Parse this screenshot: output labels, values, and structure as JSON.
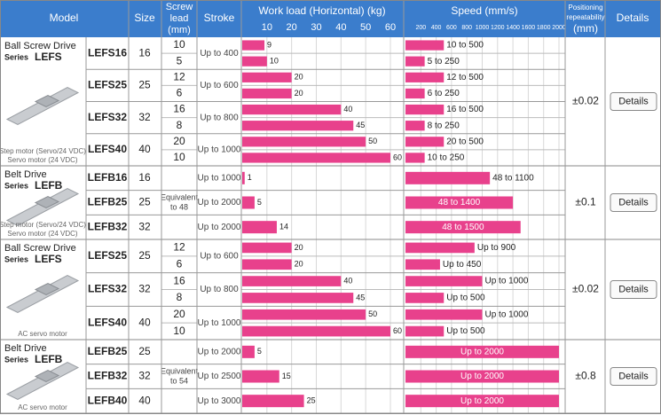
{
  "header": {
    "model": "Model",
    "size": "Size",
    "lead": [
      "Screw",
      "lead",
      "(mm)"
    ],
    "stroke": "Stroke",
    "load": "Work load (Horizontal)  (kg)",
    "speed": "Speed (mm/s)",
    "positioning": [
      "Positioning",
      "repeatability",
      "(mm)"
    ],
    "details": "Details"
  },
  "load_axis": {
    "lim": [
      0,
      60
    ],
    "ticks": [
      10,
      20,
      30,
      40,
      50,
      60
    ]
  },
  "speed_axis": {
    "lim": [
      0,
      2000
    ],
    "ticks": [
      200,
      400,
      600,
      800,
      1000,
      1200,
      1400,
      1600,
      1800,
      2000
    ]
  },
  "bar_color": "#e8418c",
  "groups": [
    {
      "title": "Ball Screw Drive",
      "series": "Series",
      "code": "LEFS",
      "motor": [
        "Step motor (Servo/24 VDC)",
        "Servo motor (24 VDC)"
      ],
      "positioning": "±0.02",
      "details": "Details",
      "models": [
        {
          "model": "LEFS16",
          "size": 16,
          "stroke": "Up to 400",
          "rows": [
            {
              "lead": 10,
              "load": 9,
              "speed": {
                "value": 500,
                "label": "10 to 500"
              }
            },
            {
              "lead": 5,
              "load": 10,
              "speed": {
                "value": 250,
                "label": "5 to 250"
              }
            }
          ]
        },
        {
          "model": "LEFS25",
          "size": 25,
          "stroke": "Up to 600",
          "rows": [
            {
              "lead": 12,
              "load": 20,
              "speed": {
                "value": 500,
                "label": "12 to 500"
              }
            },
            {
              "lead": 6,
              "load": 20,
              "speed": {
                "value": 250,
                "label": "6 to 250"
              }
            }
          ]
        },
        {
          "model": "LEFS32",
          "size": 32,
          "stroke": "Up to 800",
          "rows": [
            {
              "lead": 16,
              "load": 40,
              "speed": {
                "value": 500,
                "label": "16 to 500"
              }
            },
            {
              "lead": 8,
              "load": 45,
              "speed": {
                "value": 250,
                "label": "8 to 250"
              }
            }
          ]
        },
        {
          "model": "LEFS40",
          "size": 40,
          "stroke": "Up to 1000",
          "rows": [
            {
              "lead": 20,
              "load": 50,
              "speed": {
                "value": 500,
                "label": "20 to 500"
              }
            },
            {
              "lead": 10,
              "load": 60,
              "speed": {
                "value": 250,
                "label": "10 to 250"
              }
            }
          ]
        }
      ]
    },
    {
      "title": "Belt Drive",
      "series": "Series",
      "code": "LEFB",
      "motor": [
        "Step motor (Servo/24 VDC)",
        "Servo motor (24 VDC)"
      ],
      "positioning": "±0.1",
      "details": "Details",
      "lead": [
        "Equivalent",
        "to 48"
      ],
      "models": [
        {
          "model": "LEFB16",
          "size": 16,
          "stroke": "Up to 1000",
          "rows": [
            {
              "load": 1,
              "speed": {
                "value": 1100,
                "label": "48 to 1100"
              }
            }
          ]
        },
        {
          "model": "LEFB25",
          "size": 25,
          "stroke": "Up to 2000",
          "rows": [
            {
              "load": 5,
              "speed": {
                "value": 1400,
                "label": "48 to 1400"
              }
            }
          ]
        },
        {
          "model": "LEFB32",
          "size": 32,
          "stroke": "Up to 2000",
          "rows": [
            {
              "load": 14,
              "speed": {
                "value": 1500,
                "label": "48 to 1500"
              }
            }
          ]
        }
      ]
    },
    {
      "title": "Ball Screw Drive",
      "series": "Series",
      "code": "LEFS",
      "motor": [
        "AC servo motor"
      ],
      "positioning": "±0.02",
      "details": "Details",
      "models": [
        {
          "model": "LEFS25",
          "size": 25,
          "stroke": "Up to 600",
          "rows": [
            {
              "lead": 12,
              "load": 20,
              "speed": {
                "value": 900,
                "label": "Up to 900"
              }
            },
            {
              "lead": 6,
              "load": 20,
              "speed": {
                "value": 450,
                "label": "Up to 450"
              }
            }
          ]
        },
        {
          "model": "LEFS32",
          "size": 32,
          "stroke": "Up to 800",
          "rows": [
            {
              "lead": 16,
              "load": 40,
              "speed": {
                "value": 1000,
                "label": "Up to 1000"
              }
            },
            {
              "lead": 8,
              "load": 45,
              "speed": {
                "value": 500,
                "label": "Up to 500"
              }
            }
          ]
        },
        {
          "model": "LEFS40",
          "size": 40,
          "stroke": "Up to 1000",
          "rows": [
            {
              "lead": 20,
              "load": 50,
              "speed": {
                "value": 1000,
                "label": "Up to 1000"
              }
            },
            {
              "lead": 10,
              "load": 60,
              "speed": {
                "value": 500,
                "label": "Up to 500"
              }
            }
          ]
        }
      ]
    },
    {
      "title": "Belt Drive",
      "series": "Series",
      "code": "LEFB",
      "motor": [
        "AC servo motor"
      ],
      "positioning": "±0.8",
      "details": "Details",
      "lead": [
        "Equivalent",
        "to 54"
      ],
      "models": [
        {
          "model": "LEFB25",
          "size": 25,
          "stroke": "Up to 2000",
          "rows": [
            {
              "load": 5,
              "speed": {
                "value": 2000,
                "label": "Up to 2000"
              }
            }
          ]
        },
        {
          "model": "LEFB32",
          "size": 32,
          "stroke": "Up to 2500",
          "rows": [
            {
              "load": 15,
              "speed": {
                "value": 2000,
                "label": "Up to 2000"
              }
            }
          ]
        },
        {
          "model": "LEFB40",
          "size": 40,
          "stroke": "Up to 3000",
          "rows": [
            {
              "load": 25,
              "speed": {
                "value": 2000,
                "label": "Up to 2000"
              }
            }
          ]
        }
      ]
    }
  ]
}
